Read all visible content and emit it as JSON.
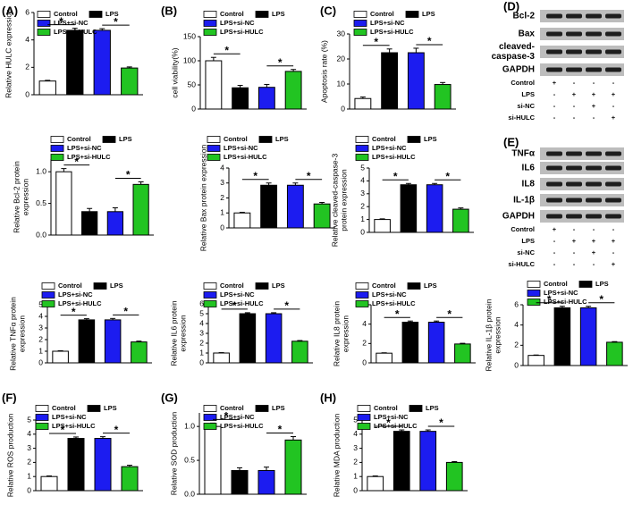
{
  "chart_data": [
    {
      "type": "bar",
      "panel": "(A)",
      "ylabel": [
        "Relative HULC expression"
      ],
      "categories": [
        null
      ],
      "series": [
        {
          "name": "Control",
          "color": "#ffffff",
          "values": [
            1.0
          ],
          "errors": [
            0.05
          ]
        },
        {
          "name": "LPS",
          "color": "#000000",
          "values": [
            4.7
          ],
          "errors": [
            0.15
          ]
        },
        {
          "name": "LPS+si-NC",
          "color": "#1c1cf0",
          "values": [
            4.7
          ],
          "errors": [
            0.12
          ]
        },
        {
          "name": "LPS+si-HULC",
          "color": "#22c422",
          "values": [
            1.95
          ],
          "errors": [
            0.08
          ]
        }
      ],
      "ylim": [
        0,
        6
      ],
      "yticks": [
        0,
        2,
        4,
        6
      ],
      "annotations": [
        "*",
        "*"
      ]
    },
    {
      "type": "bar",
      "panel": "(B)",
      "ylabel": [
        "cell viability(%)"
      ],
      "categories": [
        null
      ],
      "series": [
        {
          "name": "Control",
          "color": "#ffffff",
          "values": [
            100
          ],
          "errors": [
            7
          ]
        },
        {
          "name": "LPS",
          "color": "#000000",
          "values": [
            44
          ],
          "errors": [
            5
          ]
        },
        {
          "name": "LPS+si-NC",
          "color": "#1c1cf0",
          "values": [
            45
          ],
          "errors": [
            6
          ]
        },
        {
          "name": "LPS+si-HULC",
          "color": "#22c422",
          "values": [
            78
          ],
          "errors": [
            4
          ]
        }
      ],
      "ylim": [
        0,
        150
      ],
      "yticks": [
        0,
        50,
        100,
        150
      ],
      "annotations": [
        "*",
        "*"
      ]
    },
    {
      "type": "bar",
      "panel": "(C)",
      "ylabel": [
        "Apoptosis rate (%)"
      ],
      "categories": [
        null
      ],
      "series": [
        {
          "name": "Control",
          "color": "#ffffff",
          "values": [
            4.2
          ],
          "errors": [
            0.6
          ]
        },
        {
          "name": "LPS",
          "color": "#000000",
          "values": [
            22.5
          ],
          "errors": [
            1.5
          ]
        },
        {
          "name": "LPS+si-NC",
          "color": "#1c1cf0",
          "values": [
            22.5
          ],
          "errors": [
            1.8
          ]
        },
        {
          "name": "LPS+si-HULC",
          "color": "#22c422",
          "values": [
            9.8
          ],
          "errors": [
            0.8
          ]
        }
      ],
      "ylim": [
        0,
        30
      ],
      "yticks": [
        0,
        10,
        20,
        30
      ],
      "annotations": [
        "*",
        "*"
      ]
    },
    {
      "type": "bar",
      "ylabel": [
        "Relative Bcl-2 protein",
        "expression"
      ],
      "categories": [
        null
      ],
      "series": [
        {
          "name": "Control",
          "color": "#ffffff",
          "values": [
            1.0
          ],
          "errors": [
            0.05
          ]
        },
        {
          "name": "LPS",
          "color": "#000000",
          "values": [
            0.37
          ],
          "errors": [
            0.05
          ]
        },
        {
          "name": "LPS+si-NC",
          "color": "#1c1cf0",
          "values": [
            0.37
          ],
          "errors": [
            0.06
          ]
        },
        {
          "name": "LPS+si-HULC",
          "color": "#22c422",
          "values": [
            0.8
          ],
          "errors": [
            0.04
          ]
        }
      ],
      "ylim": [
        0,
        1.2
      ],
      "yticks": [
        {
          "value": 0,
          "label": "0.0"
        },
        0.5,
        {
          "value": 1,
          "label": "1.0"
        }
      ],
      "annotations": [
        "*",
        "*"
      ]
    },
    {
      "type": "bar",
      "ylabel": [
        "Relative Bax protein expression"
      ],
      "categories": [
        null
      ],
      "series": [
        {
          "name": "Control",
          "color": "#ffffff",
          "values": [
            1.0
          ],
          "errors": [
            0.04
          ]
        },
        {
          "name": "LPS",
          "color": "#000000",
          "values": [
            2.85
          ],
          "errors": [
            0.15
          ]
        },
        {
          "name": "LPS+si-NC",
          "color": "#1c1cf0",
          "values": [
            2.85
          ],
          "errors": [
            0.15
          ]
        },
        {
          "name": "LPS+si-HULC",
          "color": "#22c422",
          "values": [
            1.6
          ],
          "errors": [
            0.1
          ]
        }
      ],
      "ylim": [
        0,
        4
      ],
      "yticks": [
        0,
        1,
        2,
        3,
        4
      ],
      "annotations": [
        "*",
        "*"
      ]
    },
    {
      "type": "bar",
      "ylabel": [
        "Relative cleaved-caspase-3",
        "protein expression"
      ],
      "categories": [
        null
      ],
      "series": [
        {
          "name": "Control",
          "color": "#ffffff",
          "values": [
            1.0
          ],
          "errors": [
            0.05
          ]
        },
        {
          "name": "LPS",
          "color": "#000000",
          "values": [
            3.7
          ],
          "errors": [
            0.1
          ]
        },
        {
          "name": "LPS+si-NC",
          "color": "#1c1cf0",
          "values": [
            3.7
          ],
          "errors": [
            0.1
          ]
        },
        {
          "name": "LPS+si-HULC",
          "color": "#22c422",
          "values": [
            1.8
          ],
          "errors": [
            0.1
          ]
        }
      ],
      "ylim": [
        0,
        5
      ],
      "yticks": [
        0,
        1,
        2,
        3,
        4,
        5
      ],
      "annotations": [
        "*",
        "*"
      ]
    },
    {
      "type": "bar",
      "ylabel": [
        "Relative TNFα protein",
        "expression"
      ],
      "categories": [
        null
      ],
      "series": [
        {
          "name": "Control",
          "color": "#ffffff",
          "values": [
            1.0
          ],
          "errors": [
            0.04
          ]
        },
        {
          "name": "LPS",
          "color": "#000000",
          "values": [
            3.7
          ],
          "errors": [
            0.1
          ]
        },
        {
          "name": "LPS+si-NC",
          "color": "#1c1cf0",
          "values": [
            3.7
          ],
          "errors": [
            0.12
          ]
        },
        {
          "name": "LPS+si-HULC",
          "color": "#22c422",
          "values": [
            1.8
          ],
          "errors": [
            0.07
          ]
        }
      ],
      "ylim": [
        0,
        5
      ],
      "yticks": [
        0,
        1,
        2,
        3,
        4,
        5
      ],
      "annotations": [
        "*",
        "*"
      ]
    },
    {
      "type": "bar",
      "ylabel": [
        "Relative IL6 protein",
        "expression"
      ],
      "categories": [
        null
      ],
      "series": [
        {
          "name": "Control",
          "color": "#ffffff",
          "values": [
            1.0
          ],
          "errors": [
            0.04
          ]
        },
        {
          "name": "LPS",
          "color": "#000000",
          "values": [
            5.0
          ],
          "errors": [
            0.1
          ]
        },
        {
          "name": "LPS+si-NC",
          "color": "#1c1cf0",
          "values": [
            5.0
          ],
          "errors": [
            0.1
          ]
        },
        {
          "name": "LPS+si-HULC",
          "color": "#22c422",
          "values": [
            2.2
          ],
          "errors": [
            0.07
          ]
        }
      ],
      "ylim": [
        0,
        6
      ],
      "yticks": [
        0,
        1,
        2,
        3,
        4,
        5,
        6
      ],
      "annotations": [
        "*",
        "*"
      ]
    },
    {
      "type": "bar",
      "ylabel": [
        "Relative IL8 protein",
        "expression"
      ],
      "categories": [
        null
      ],
      "series": [
        {
          "name": "Control",
          "color": "#ffffff",
          "values": [
            1.0
          ],
          "errors": [
            0.04
          ]
        },
        {
          "name": "LPS",
          "color": "#000000",
          "values": [
            4.2
          ],
          "errors": [
            0.12
          ]
        },
        {
          "name": "LPS+si-NC",
          "color": "#1c1cf0",
          "values": [
            4.2
          ],
          "errors": [
            0.12
          ]
        },
        {
          "name": "LPS+si-HULC",
          "color": "#22c422",
          "values": [
            1.95
          ],
          "errors": [
            0.07
          ]
        }
      ],
      "ylim": [
        0,
        6
      ],
      "yticks": [
        0,
        2,
        4,
        6
      ],
      "annotations": [
        "*",
        "*"
      ]
    },
    {
      "type": "bar",
      "ylabel": [
        "Relative IL-1β protein",
        "expression"
      ],
      "categories": [
        null
      ],
      "series": [
        {
          "name": "Control",
          "color": "#ffffff",
          "values": [
            1.0
          ],
          "errors": [
            0.04
          ]
        },
        {
          "name": "LPS",
          "color": "#000000",
          "values": [
            5.7
          ],
          "errors": [
            0.15
          ]
        },
        {
          "name": "LPS+si-NC",
          "color": "#1c1cf0",
          "values": [
            5.7
          ],
          "errors": [
            0.15
          ]
        },
        {
          "name": "LPS+si-HULC",
          "color": "#22c422",
          "values": [
            2.3
          ],
          "errors": [
            0.06
          ]
        }
      ],
      "ylim": [
        0,
        6
      ],
      "yticks": [
        0,
        2,
        4,
        6
      ],
      "annotations": [
        "*",
        "*"
      ]
    },
    {
      "type": "bar",
      "panel": "(F)",
      "ylabel": [
        "Relative ROS production"
      ],
      "categories": [
        null
      ],
      "series": [
        {
          "name": "Control",
          "color": "#ffffff",
          "values": [
            1.0
          ],
          "errors": [
            0.04
          ]
        },
        {
          "name": "LPS",
          "color": "#000000",
          "values": [
            3.7
          ],
          "errors": [
            0.1
          ]
        },
        {
          "name": "LPS+si-NC",
          "color": "#1c1cf0",
          "values": [
            3.7
          ],
          "errors": [
            0.12
          ]
        },
        {
          "name": "LPS+si-HULC",
          "color": "#22c422",
          "values": [
            1.7
          ],
          "errors": [
            0.1
          ]
        }
      ],
      "ylim": [
        0,
        5
      ],
      "yticks": [
        0,
        1,
        2,
        3,
        4,
        5
      ],
      "annotations": [
        "*",
        "*"
      ]
    },
    {
      "type": "bar",
      "panel": "(G)",
      "ylabel": [
        "Relative SOD production"
      ],
      "categories": [
        null
      ],
      "series": [
        {
          "name": "Control",
          "color": "#ffffff",
          "values": [
            1.0
          ],
          "errors": [
            0.05
          ]
        },
        {
          "name": "LPS",
          "color": "#000000",
          "values": [
            0.35
          ],
          "errors": [
            0.04
          ]
        },
        {
          "name": "LPS+si-NC",
          "color": "#1c1cf0",
          "values": [
            0.35
          ],
          "errors": [
            0.05
          ]
        },
        {
          "name": "LPS+si-HULC",
          "color": "#22c422",
          "values": [
            0.8
          ],
          "errors": [
            0.05
          ]
        }
      ],
      "ylim": [
        0,
        1.2
      ],
      "yticks": [
        {
          "value": 0,
          "label": "0.0"
        },
        0.5,
        {
          "value": 1,
          "label": "1.0"
        }
      ],
      "annotations": [
        "*",
        "*"
      ]
    },
    {
      "type": "bar",
      "panel": "(H)",
      "ylabel": [
        "Relative MDA production"
      ],
      "categories": [
        null
      ],
      "series": [
        {
          "name": "Control",
          "color": "#ffffff",
          "values": [
            1.0
          ],
          "errors": [
            0.04
          ]
        },
        {
          "name": "LPS",
          "color": "#000000",
          "values": [
            4.2
          ],
          "errors": [
            0.1
          ]
        },
        {
          "name": "LPS+si-NC",
          "color": "#1c1cf0",
          "values": [
            4.2
          ],
          "errors": [
            0.1
          ]
        },
        {
          "name": "LPS+si-HULC",
          "color": "#22c422",
          "values": [
            2.0
          ],
          "errors": [
            0.06
          ]
        }
      ],
      "ylim": [
        0,
        5
      ],
      "yticks": [
        0,
        1,
        2,
        3,
        4,
        5
      ],
      "annotations": [
        "*",
        "*"
      ]
    }
  ],
  "blots": [
    {
      "panel": "(D)",
      "proteins": [
        [
          "Bcl-2"
        ],
        [
          "Bax"
        ],
        [
          "cleaved-",
          "caspase-3"
        ],
        [
          "GAPDH"
        ]
      ],
      "groups": [
        [
          "Control",
          "+",
          "-",
          "-",
          "-"
        ],
        [
          "LPS",
          "-",
          "+",
          "+",
          "+"
        ],
        [
          "si-NC",
          "-",
          "-",
          "+",
          "-"
        ],
        [
          "si-HULC",
          "-",
          "-",
          "-",
          "+"
        ]
      ]
    },
    {
      "panel": "(E)",
      "proteins": [
        [
          "TNFα"
        ],
        [
          "IL6"
        ],
        [
          "IL8"
        ],
        [
          "IL-1β"
        ],
        [
          "GAPDH"
        ]
      ],
      "groups": [
        [
          "Control",
          "+",
          "-",
          "-",
          "-"
        ],
        [
          "LPS",
          "-",
          "+",
          "+",
          "+"
        ],
        [
          "si-NC",
          "-",
          "-",
          "+",
          "-"
        ],
        [
          "si-HULC",
          "-",
          "-",
          "-",
          "+"
        ]
      ]
    }
  ]
}
